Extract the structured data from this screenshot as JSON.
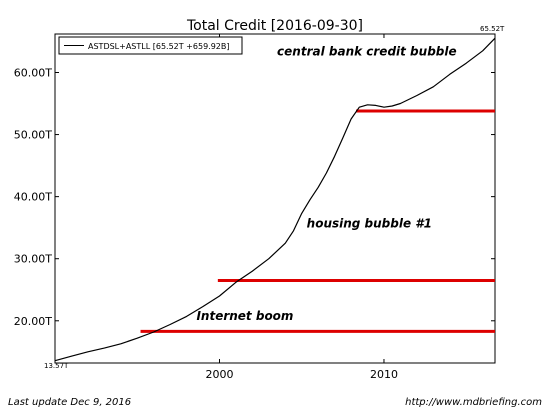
{
  "chart_data": {
    "type": "line",
    "title": "Total Credit  [2016-09-30]",
    "legend": {
      "label": "ASTDSL+ASTLL [65.52T +659.92B]",
      "placement": "top-left"
    },
    "series": [
      {
        "name": "ASTDSL+ASTLL [65.52T +659.92B]",
        "color": "#000000",
        "x": [
          1990.0,
          1991.0,
          1992.0,
          1993.0,
          1994.0,
          1995.0,
          1996.0,
          1997.0,
          1998.0,
          1999.0,
          2000.0,
          2001.0,
          2002.0,
          2003.0,
          2004.0,
          2004.5,
          2005.0,
          2005.5,
          2006.0,
          2006.5,
          2007.0,
          2007.5,
          2008.0,
          2008.5,
          2009.0,
          2009.5,
          2010.0,
          2010.5,
          2011.0,
          2012.0,
          2013.0,
          2014.0,
          2015.0,
          2016.0,
          2016.75
        ],
        "y": [
          13.57,
          14.3,
          15.0,
          15.6,
          16.3,
          17.2,
          18.2,
          19.4,
          20.7,
          22.3,
          24.0,
          26.2,
          28.0,
          30.0,
          32.5,
          34.5,
          37.3,
          39.5,
          41.5,
          43.8,
          46.5,
          49.5,
          52.5,
          54.4,
          54.8,
          54.7,
          54.4,
          54.6,
          55.0,
          56.3,
          57.7,
          59.7,
          61.5,
          63.5,
          65.52
        ]
      }
    ],
    "hlines": [
      {
        "y": 18.3,
        "x_start": 1995.2,
        "x_end": 2016.75,
        "color": "#dd0000"
      },
      {
        "y": 26.5,
        "x_start": 1999.9,
        "x_end": 2016.75,
        "color": "#dd0000"
      },
      {
        "y": 53.8,
        "x_start": 2008.3,
        "x_end": 2016.75,
        "color": "#dd0000"
      }
    ],
    "annotations": [
      {
        "text": "central bank credit bubble",
        "x": 2003.5,
        "y": 62.7
      },
      {
        "text": "housing bubble #1",
        "x": 2005.3,
        "y": 35.0
      },
      {
        "text": "Internet boom",
        "x": 1998.6,
        "y": 20.1
      }
    ],
    "xticks": [
      {
        "value": 2000,
        "label": "2000"
      },
      {
        "value": 2010,
        "label": "2010"
      }
    ],
    "yticks": [
      {
        "value": 20,
        "label": "20.00T"
      },
      {
        "value": 30,
        "label": "30.00T"
      },
      {
        "value": 40,
        "label": "40.00T"
      },
      {
        "value": 50,
        "label": "50.00T"
      },
      {
        "value": 60,
        "label": "60.00T"
      }
    ],
    "start_label": "13.57T",
    "end_label": "65.52T",
    "xlim": [
      1990.0,
      2016.75
    ],
    "ylim": [
      13.2,
      66.2
    ],
    "xlabel": "",
    "ylabel": "",
    "grid": false
  },
  "footer": {
    "left": "Last update Dec  9, 2016",
    "right": "http://www.mdbriefing.com"
  }
}
